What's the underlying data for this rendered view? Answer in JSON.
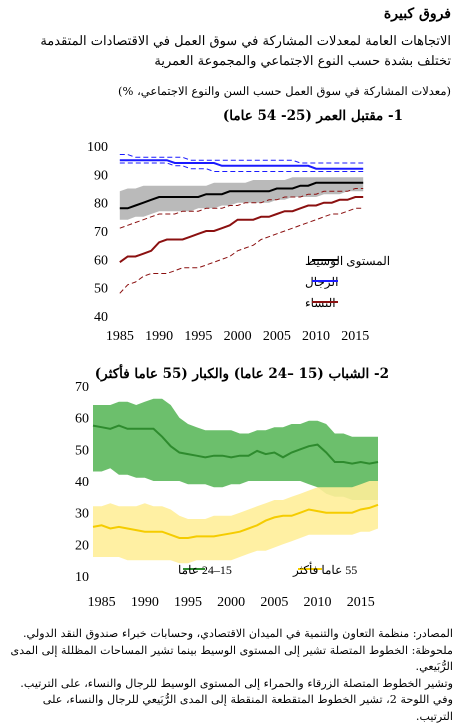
{
  "header": {
    "title": "فروق كبيرة",
    "subtitle": "الاتجاهات العامة لمعدلات المشاركة في سوق العمل في الاقتصادات المتقدمة تختلف بشدة حسب النوع الاجتماعي والمجموعة العمرية",
    "unit_note": "(معدلات المشاركة في سوق العمل حسب السن والنوع الاجتماعي، %)"
  },
  "notes": {
    "sources": "المصادر: منظمة التعاون والتنمية في الميدان الاقتصادي، وحسابات خبراء صندوق النقد الدولي.",
    "note1": "ملحوظة: الخطوط المتصلة تشير إلى المستوى الوسيط بينما تشير المساحات المظللة إلى المدى الرُّبَيعي.",
    "note2": "وتشير الخطوط المتصلة الزرقاء والحمراء إلى المستوى الوسيط للرجال والنساء، على الترتيب. وفي اللوحة 2، تشير الخطوط المتقطعة المنقطة إلى المدى الرُّبَيعي للرجال والنساء، على الترتيب."
  },
  "colors": {
    "median": "#000000",
    "men": "#1a1aff",
    "women": "#8b1010",
    "grey_band": "#b3b3b3",
    "youth_band": "#5cb85c",
    "youth_line": "#2e8b2e",
    "older_band": "#ffee99",
    "older_line": "#f5cc00"
  },
  "chart_data": [
    {
      "type": "line",
      "title": "1- مقتبل العمر (25- 54 عاما)",
      "x_ticks": [
        "1985",
        "1990",
        "1995",
        "2000",
        "2005",
        "2010",
        "2015"
      ],
      "y_ticks": [
        "40",
        "50",
        "60",
        "70",
        "80",
        "90",
        "100"
      ],
      "xlim": [
        1984,
        2017
      ],
      "ylim": [
        40,
        100
      ],
      "grid": false,
      "legend_position": "bottom-right",
      "x": [
        1985,
        1986,
        1987,
        1988,
        1989,
        1990,
        1991,
        1992,
        1993,
        1994,
        1995,
        1996,
        1997,
        1998,
        1999,
        2000,
        2001,
        2002,
        2003,
        2004,
        2005,
        2006,
        2007,
        2008,
        2009,
        2010,
        2011,
        2012,
        2013,
        2014,
        2015,
        2016
      ],
      "series": [
        {
          "name": "المستوى الوسيط",
          "color": "#000000",
          "values": [
            78,
            78,
            79,
            80,
            81,
            82,
            82,
            82,
            82,
            82,
            82,
            83,
            83,
            83,
            84,
            84,
            84,
            84,
            84,
            84,
            85,
            85,
            85,
            86,
            86,
            87,
            87,
            87,
            87,
            87,
            87,
            87
          ]
        },
        {
          "name": "الرجال",
          "color": "#1a1aff",
          "values": [
            95,
            95,
            95,
            95,
            95,
            95,
            95,
            94,
            94,
            94,
            94,
            94,
            94,
            93,
            93,
            93,
            93,
            93,
            93,
            93,
            93,
            93,
            93,
            93,
            93,
            92,
            92,
            92,
            92,
            92,
            92,
            92
          ]
        },
        {
          "name": "النساء",
          "color": "#8b1010",
          "values": [
            59,
            61,
            61,
            62,
            63,
            66,
            67,
            67,
            67,
            68,
            69,
            70,
            70,
            71,
            72,
            74,
            74,
            74,
            75,
            75,
            76,
            77,
            77,
            78,
            79,
            79,
            80,
            80,
            81,
            81,
            82,
            82
          ]
        }
      ],
      "bands": [
        {
          "color": "#b3b3b3",
          "low": [
            74,
            74,
            75,
            75,
            76,
            77,
            77,
            77,
            77,
            77,
            78,
            78,
            78,
            79,
            79,
            80,
            80,
            80,
            80,
            80,
            81,
            81,
            82,
            82,
            82,
            82,
            83,
            83,
            83,
            84,
            84,
            84
          ],
          "high": [
            84,
            85,
            85,
            86,
            86,
            86,
            86,
            86,
            86,
            86,
            86,
            86,
            87,
            87,
            87,
            87,
            87,
            88,
            88,
            88,
            88,
            88,
            89,
            89,
            89,
            89,
            89,
            89,
            89,
            89,
            89,
            89
          ]
        }
      ],
      "dashed_ranges": [
        {
          "color": "#1a1aff",
          "low": [
            94,
            94,
            94,
            94,
            94,
            94,
            94,
            93,
            93,
            92,
            92,
            92,
            91,
            91,
            91,
            91,
            91,
            91,
            91,
            91,
            91,
            91,
            91,
            91,
            91,
            91,
            91,
            91,
            91,
            91,
            91,
            91
          ],
          "high": [
            97,
            97,
            96,
            96,
            96,
            96,
            96,
            96,
            96,
            95,
            95,
            95,
            95,
            95,
            95,
            95,
            95,
            95,
            95,
            95,
            95,
            95,
            95,
            94,
            94,
            94,
            94,
            94,
            94,
            94,
            94,
            94
          ]
        },
        {
          "color": "#8b1010",
          "low": [
            48,
            51,
            52,
            54,
            55,
            55,
            55,
            56,
            57,
            57,
            57,
            58,
            59,
            60,
            61,
            63,
            64,
            65,
            67,
            68,
            69,
            70,
            71,
            72,
            73,
            74,
            75,
            76,
            76,
            77,
            78,
            78
          ],
          "high": [
            71,
            72,
            73,
            74,
            75,
            76,
            76,
            76,
            77,
            77,
            77,
            78,
            78,
            78,
            79,
            79,
            80,
            80,
            80,
            81,
            81,
            82,
            82,
            82,
            83,
            83,
            84,
            84,
            84,
            84,
            85,
            85
          ]
        }
      ]
    },
    {
      "type": "line",
      "title": "2- الشباب (15 –24 عاما) والكبار (55 عاما فأكثر)",
      "x_ticks": [
        "1985",
        "1990",
        "1995",
        "2000",
        "2005",
        "2010",
        "2015"
      ],
      "y_ticks": [
        "10",
        "20",
        "30",
        "40",
        "50",
        "60",
        "70"
      ],
      "xlim": [
        1984,
        2017
      ],
      "ylim": [
        10,
        70
      ],
      "grid": false,
      "legend_position": "bottom",
      "x": [
        1984,
        1985,
        1986,
        1987,
        1988,
        1989,
        1990,
        1991,
        1992,
        1993,
        1994,
        1995,
        1996,
        1997,
        1998,
        1999,
        2000,
        2001,
        2002,
        2003,
        2004,
        2005,
        2006,
        2007,
        2008,
        2009,
        2010,
        2011,
        2012,
        2013,
        2014,
        2015,
        2016,
        2017
      ],
      "series": [
        {
          "name": "15–24 عاما",
          "color": "#2e8b2e",
          "values": [
            57.5,
            57,
            56.5,
            57.5,
            56.5,
            56.5,
            56.5,
            56.5,
            54,
            51,
            49,
            48.5,
            48,
            47.5,
            48,
            48,
            47.5,
            48,
            48,
            49.5,
            48.5,
            49,
            47.5,
            49,
            50,
            51,
            51.5,
            49,
            46,
            46,
            45.5,
            46,
            45.5,
            46
          ]
        },
        {
          "name": "55 عاما فأكثر",
          "color": "#f5cc00",
          "values": [
            25.5,
            26,
            25,
            25.5,
            25,
            24.5,
            24,
            24,
            24,
            23,
            22,
            22,
            22.5,
            22.5,
            22.5,
            23,
            23.5,
            24,
            25,
            26,
            27.5,
            28.5,
            29,
            29,
            30,
            31,
            30.5,
            30,
            30,
            30,
            30,
            31,
            31.5,
            32.5
          ]
        }
      ],
      "bands": [
        {
          "color": "#5cb85c",
          "low": [
            43,
            43,
            44,
            42,
            42,
            41,
            41,
            40,
            40,
            40,
            40,
            39,
            39,
            39,
            38,
            38,
            39,
            39,
            40,
            40,
            40,
            40,
            40,
            40,
            40,
            39,
            38,
            36,
            35,
            35,
            34,
            34,
            34,
            34
          ],
          "high": [
            64,
            64,
            64,
            65,
            65,
            64,
            65,
            66,
            66,
            64,
            60,
            58,
            57,
            56,
            56,
            56,
            56,
            55,
            55,
            56,
            56,
            57,
            57,
            58,
            58,
            59,
            59,
            58,
            55,
            55,
            54,
            54,
            54,
            54
          ]
        },
        {
          "color": "#ffee99",
          "low": [
            16,
            16,
            16,
            16,
            15,
            15,
            15,
            15,
            15,
            15,
            14,
            14,
            15,
            15,
            15,
            15,
            15,
            16,
            17,
            18,
            18,
            19,
            20,
            21,
            22,
            23,
            23,
            23,
            23,
            23,
            23,
            24,
            24,
            25
          ],
          "high": [
            32,
            32,
            33,
            32,
            32,
            32,
            33,
            32,
            32,
            31,
            29,
            28,
            28,
            28,
            29,
            29,
            29,
            30,
            31,
            32,
            33,
            34,
            34,
            35,
            36,
            37,
            38,
            38,
            38,
            38,
            38,
            39,
            40,
            40
          ]
        }
      ]
    }
  ]
}
